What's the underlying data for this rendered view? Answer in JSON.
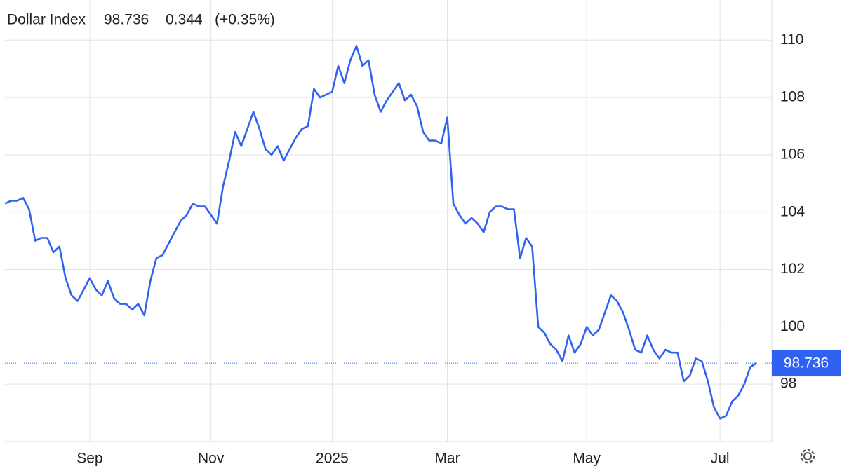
{
  "chart_data": {
    "type": "line",
    "title": "Dollar Index",
    "change": 0.344,
    "change_pct": "(+0.35%)",
    "color": "#2f62f0",
    "change_color": "#2ca02c",
    "categories": [
      null,
      null,
      null,
      null,
      null,
      null,
      null,
      null,
      null,
      null,
      null,
      null,
      null,
      null,
      "Sep",
      null,
      null,
      null,
      null,
      null,
      null,
      null,
      null,
      null,
      null,
      null,
      null,
      null,
      null,
      null,
      null,
      null,
      null,
      null,
      "Nov",
      null,
      null,
      null,
      null,
      null,
      null,
      null,
      null,
      null,
      null,
      null,
      null,
      null,
      null,
      null,
      null,
      null,
      null,
      null,
      "2025",
      null,
      null,
      null,
      null,
      null,
      null,
      null,
      null,
      null,
      null,
      null,
      null,
      null,
      null,
      null,
      null,
      null,
      null,
      "Mar",
      null,
      null,
      null,
      null,
      null,
      null,
      null,
      null,
      null,
      null,
      null,
      null,
      null,
      null,
      null,
      null,
      null,
      null,
      null,
      null,
      null,
      null,
      "May",
      null,
      null,
      null,
      null,
      null,
      null,
      null,
      null,
      null,
      null,
      null,
      null,
      null,
      null,
      null,
      null,
      null,
      null,
      null,
      null,
      null,
      "Jul",
      null,
      null,
      null,
      null,
      null,
      null
    ],
    "values": [
      104.3,
      104.4,
      104.4,
      104.5,
      104.1,
      103.0,
      103.1,
      103.1,
      102.6,
      102.8,
      101.7,
      101.1,
      100.9,
      101.3,
      101.7,
      101.3,
      101.1,
      101.6,
      101.0,
      100.8,
      100.8,
      100.6,
      100.8,
      100.4,
      101.6,
      102.4,
      102.5,
      102.9,
      103.3,
      103.7,
      103.9,
      104.3,
      104.2,
      104.2,
      103.9,
      103.6,
      104.9,
      105.8,
      106.8,
      106.3,
      106.9,
      107.5,
      106.9,
      106.2,
      106.0,
      106.3,
      105.8,
      106.2,
      106.6,
      106.9,
      107.0,
      108.3,
      108.0,
      108.1,
      108.2,
      109.1,
      108.5,
      109.3,
      109.8,
      109.1,
      109.3,
      108.1,
      107.5,
      107.9,
      108.2,
      108.5,
      107.9,
      108.1,
      107.7,
      106.8,
      106.5,
      106.5,
      106.4,
      107.3,
      104.3,
      103.9,
      103.6,
      103.8,
      103.6,
      103.3,
      104.0,
      104.2,
      104.2,
      104.1,
      104.1,
      102.4,
      103.1,
      102.8,
      100.0,
      99.8,
      99.4,
      99.2,
      98.8,
      99.7,
      99.1,
      99.4,
      100.0,
      99.7,
      99.9,
      100.5,
      101.1,
      100.9,
      100.5,
      99.9,
      99.2,
      99.1,
      99.7,
      99.2,
      98.9,
      99.2,
      99.1,
      99.1,
      98.1,
      98.3,
      98.9,
      98.8,
      98.1,
      97.2,
      96.8,
      96.9,
      97.4,
      97.6,
      98.0,
      98.6,
      98.736
    ],
    "ylim": [
      96,
      111.4
    ],
    "yticks": [
      98,
      100,
      102,
      104,
      106,
      108,
      110
    ],
    "grid": true
  }
}
